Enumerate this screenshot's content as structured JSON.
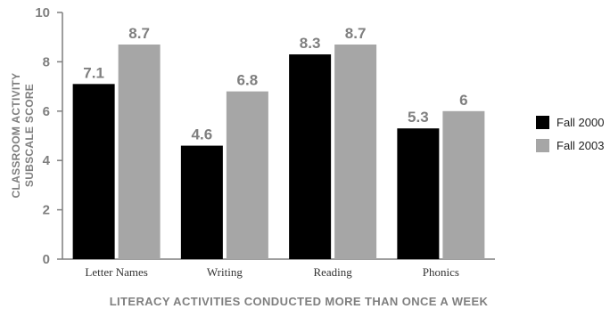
{
  "chart_data": {
    "type": "bar",
    "categories": [
      "Letter Names",
      "Writing",
      "Reading",
      "Phonics"
    ],
    "series": [
      {
        "name": "Fall 2000",
        "values": [
          7.1,
          4.6,
          8.3,
          5.3
        ],
        "labels": [
          "7.1",
          "4.6",
          "8.3",
          "5.3"
        ],
        "color": "#000000"
      },
      {
        "name": "Fall 2003",
        "values": [
          8.7,
          6.8,
          8.7,
          6
        ],
        "labels": [
          "8.7",
          "6.8",
          "8.7",
          "6"
        ],
        "color": "#a6a6a6"
      }
    ],
    "ylabel_lines": [
      "CLASSROOM ACTIVITY",
      "SUBSCALE SCORE"
    ],
    "xlabel": "LITERACY ACTIVITIES CONDUCTED MORE THAN ONCE A WEEK",
    "ylim": [
      0,
      10
    ],
    "yticks": [
      "0",
      "2",
      "4",
      "6",
      "8",
      "10"
    ],
    "grid": false,
    "legend_position": "right",
    "axis_color": "#7f7f7f"
  }
}
